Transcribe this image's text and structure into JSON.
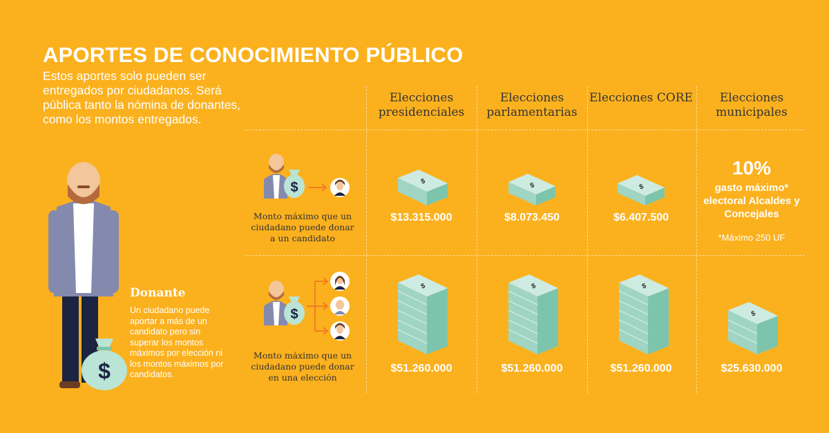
{
  "title": "APORTES DE CONOCIMIENTO PÚBLICO",
  "intro": "Estos aportes solo pueden ser entregados por ciudadanos. Será pública tanto la nómina de donantes, como los montos entregados.",
  "columns": [
    "Elecciones presidenciales",
    "Elecciones parlamentarias",
    "Elecciones CORE",
    "Elecciones municipales"
  ],
  "rows": [
    {
      "label": "Monto máximo que un ciudadano puede donar a un candidato",
      "amounts": [
        "$13.315.000",
        "$8.073.450",
        "$6.407.500"
      ],
      "municipal": {
        "percent": "10%",
        "text": "gasto máximo* electoral Alcaldes y Concejales",
        "footnote": "*Máximo 250 UF"
      }
    },
    {
      "label": "Monto máximo que un ciudadano puede donar en una elección",
      "amounts": [
        "$51.260.000",
        "$51.260.000",
        "$51.260.000",
        "$25.630.000"
      ]
    }
  ],
  "donor": {
    "title": "Donante",
    "description": "Un ciudadano puede aportar a más de un candidato pero sin superar los montos máximos por elección ni los montos máximos por candidatos."
  },
  "money_symbol": "$",
  "colors": {
    "background": "#FBB11E",
    "bill": "#B9E4D6",
    "bill_dark": "#7CC5AC",
    "text_dark": "#333333",
    "blazer": "#8489AE"
  },
  "icons": [
    "donor-illustration",
    "money-bag-icon",
    "cash-stack-icon",
    "person-avatar-icon",
    "arrow-icon"
  ]
}
